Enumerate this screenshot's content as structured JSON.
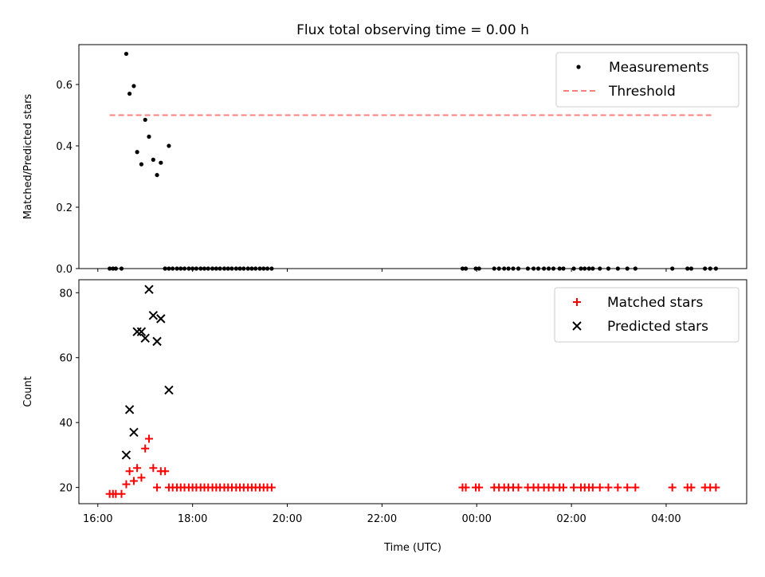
{
  "chart_data": [
    {
      "type": "scatter",
      "title": "Flux total observing time = 0.00 h",
      "xlabel": "",
      "ylabel": "Matched/Predicted stars",
      "ylim": [
        0,
        0.73
      ],
      "yticks": [
        0.0,
        0.2,
        0.4,
        0.6
      ],
      "ytick_labels": [
        "0.0",
        "0.2",
        "0.4",
        "0.6"
      ],
      "x_unit": "hours since 16:00 UTC",
      "legend": {
        "placement": "upper right",
        "entries": [
          "Measurements",
          "Threshold"
        ]
      },
      "series": [
        {
          "name": "Measurements",
          "color": "#000000",
          "marker": "dot",
          "x": [
            0.25,
            0.32,
            0.38,
            0.5,
            0.6,
            0.67,
            0.76,
            0.83,
            0.92,
            1.0,
            1.08,
            1.17,
            1.25,
            1.33,
            1.42,
            1.5,
            1.42,
            1.5,
            1.58,
            1.67,
            1.75,
            1.83,
            1.92,
            2.0,
            2.08,
            2.17,
            2.25,
            2.33,
            2.42,
            2.5,
            2.58,
            2.67,
            2.75,
            2.83,
            2.92,
            3.0,
            3.08,
            3.17,
            3.25,
            3.33,
            3.42,
            3.5,
            3.58,
            3.67,
            7.7,
            7.77,
            7.98,
            8.05,
            8.37,
            8.47,
            8.58,
            8.67,
            8.77,
            8.88,
            9.08,
            9.2,
            9.3,
            9.42,
            9.52,
            9.62,
            9.75,
            9.83,
            10.05,
            10.2,
            10.28,
            10.37,
            10.45,
            10.6,
            10.78,
            10.98,
            11.18,
            11.35,
            12.13,
            12.45,
            12.53,
            12.82,
            12.93,
            13.05
          ],
          "y": [
            0,
            0,
            0,
            0,
            0.7,
            0.57,
            0.595,
            0.38,
            0.34,
            0.485,
            0.43,
            0.355,
            0.305,
            0.345,
            0,
            0.4,
            0,
            0,
            0,
            0,
            0,
            0,
            0,
            0,
            0,
            0,
            0,
            0,
            0,
            0,
            0,
            0,
            0,
            0,
            0,
            0,
            0,
            0,
            0,
            0,
            0,
            0,
            0,
            0,
            0,
            0,
            0,
            0,
            0,
            0,
            0,
            0,
            0,
            0,
            0,
            0,
            0,
            0,
            0,
            0,
            0,
            0,
            0,
            0,
            0,
            0,
            0,
            0,
            0,
            0,
            0,
            0,
            0,
            0,
            0,
            0,
            0,
            0
          ]
        },
        {
          "name": "Threshold",
          "color": "#ff7f7f",
          "style": "dashed",
          "x": [
            0.25,
            13.0
          ],
          "y": [
            0.5,
            0.5
          ]
        }
      ]
    },
    {
      "type": "scatter",
      "title": "",
      "xlabel": "Time (UTC)",
      "ylabel": "Count",
      "ylim": [
        15,
        84
      ],
      "yticks": [
        20,
        40,
        60,
        80
      ],
      "ytick_labels": [
        "20",
        "40",
        "60",
        "80"
      ],
      "xlim": [
        -0.4,
        13.7
      ],
      "xticks": [
        0,
        2,
        4,
        6,
        8,
        10,
        12
      ],
      "xtick_labels": [
        "16:00",
        "18:00",
        "20:00",
        "22:00",
        "00:00",
        "02:00",
        "04:00"
      ],
      "x_unit": "hours since 16:00 UTC",
      "legend": {
        "placement": "upper right",
        "entries": [
          "Matched stars",
          "Predicted stars"
        ]
      },
      "series": [
        {
          "name": "Matched stars",
          "color": "#ff0000",
          "marker": "plus",
          "x": [
            0.25,
            0.32,
            0.38,
            0.5,
            0.6,
            0.67,
            0.76,
            0.83,
            0.92,
            1.0,
            1.08,
            1.17,
            1.25,
            1.33,
            1.42,
            1.5,
            1.58,
            1.67,
            1.75,
            1.83,
            1.92,
            2.0,
            2.08,
            2.17,
            2.25,
            2.33,
            2.42,
            2.5,
            2.58,
            2.67,
            2.75,
            2.83,
            2.92,
            3.0,
            3.08,
            3.17,
            3.25,
            3.33,
            3.42,
            3.5,
            3.58,
            3.67,
            7.7,
            7.77,
            7.98,
            8.05,
            8.37,
            8.47,
            8.58,
            8.67,
            8.77,
            8.88,
            9.08,
            9.2,
            9.3,
            9.42,
            9.52,
            9.62,
            9.75,
            9.83,
            10.05,
            10.2,
            10.28,
            10.37,
            10.45,
            10.6,
            10.78,
            10.98,
            11.18,
            11.35,
            12.13,
            12.45,
            12.53,
            12.82,
            12.93,
            13.05
          ],
          "y": [
            18,
            18,
            18,
            18,
            21,
            25,
            22,
            26,
            23,
            32,
            35,
            26,
            20,
            25,
            25,
            20,
            20,
            20,
            20,
            20,
            20,
            20,
            20,
            20,
            20,
            20,
            20,
            20,
            20,
            20,
            20,
            20,
            20,
            20,
            20,
            20,
            20,
            20,
            20,
            20,
            20,
            20,
            20,
            20,
            20,
            20,
            20,
            20,
            20,
            20,
            20,
            20,
            20,
            20,
            20,
            20,
            20,
            20,
            20,
            20,
            20,
            20,
            20,
            20,
            20,
            20,
            20,
            20,
            20,
            20,
            20,
            20,
            20,
            20,
            20,
            20
          ]
        },
        {
          "name": "Predicted stars",
          "color": "#000000",
          "marker": "x",
          "x": [
            0.6,
            0.67,
            0.76,
            0.83,
            0.92,
            1.0,
            1.08,
            1.17,
            1.25,
            1.33,
            1.5
          ],
          "y": [
            30,
            44,
            37,
            68,
            68,
            66,
            81,
            73,
            65,
            72,
            50
          ]
        }
      ]
    }
  ]
}
